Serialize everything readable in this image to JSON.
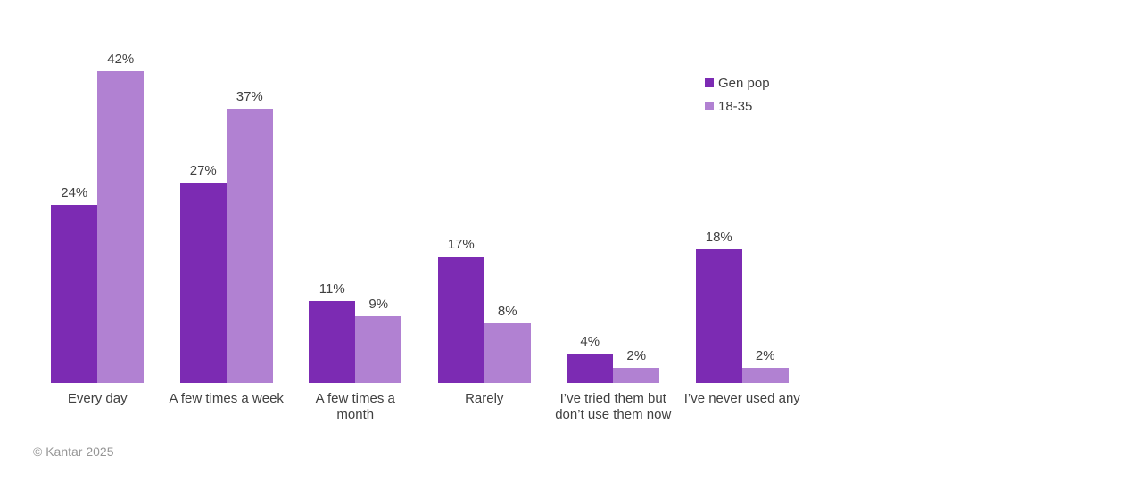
{
  "chart_data": {
    "type": "bar",
    "categories": [
      "Every day",
      "A few times a week",
      "A few times a\nmonth",
      "Rarely",
      "I’ve tried them but\ndon’t use them now",
      "I’ve never used any"
    ],
    "series": [
      {
        "name": "Gen pop",
        "color": "#7C2BB3",
        "values": [
          24,
          27,
          11,
          17,
          4,
          18
        ]
      },
      {
        "name": "18-35",
        "color": "#B181D2",
        "values": [
          42,
          37,
          9,
          8,
          2,
          2
        ]
      }
    ],
    "value_suffix": "%",
    "title": "",
    "xlabel": "",
    "ylabel": "",
    "ylim": [
      0,
      45
    ],
    "grid": false,
    "legend_position": "top-right",
    "data_labels": true
  },
  "footer": {
    "copyright": "© Kantar 2025"
  },
  "colors": {
    "background": "#FFFFFF",
    "label_text": "#404040",
    "footer_text": "#969696"
  }
}
